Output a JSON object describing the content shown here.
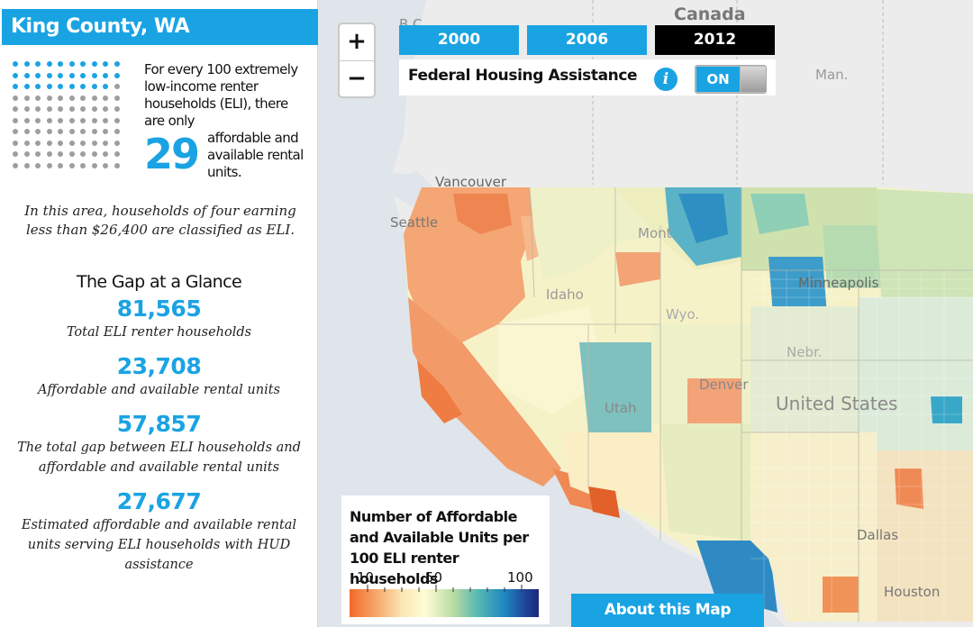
{
  "sidebar": {
    "title": "King County, WA",
    "dot_grid": {
      "total": 100,
      "highlighted": 29,
      "colors": {
        "highlighted": "#1aa3e3",
        "remaining": "#9e9e9e"
      }
    },
    "stat_text_1": "For every 100 extremely low-income renter households (ELI), there are only",
    "stat_number": "29",
    "stat_text_2": "affordable and available rental units.",
    "eli_note": "In this area, households of four earning less than $26,400 are classified as ELI.",
    "gap_heading": "The Gap at a Glance",
    "stats": [
      {
        "value": "81,565",
        "label": "Total ELI renter households"
      },
      {
        "value": "23,708",
        "label": "Affordable and available rental units"
      },
      {
        "value": "57,857",
        "label": "The total gap between ELI households and affordable and available rental units"
      },
      {
        "value": "27,677",
        "label": "Estimated affordable and available rental units serving ELI households with HUD assistance"
      }
    ]
  },
  "map": {
    "zoom_in": "+",
    "zoom_out": "−",
    "years": [
      {
        "label": "2000",
        "active": false
      },
      {
        "label": "2006",
        "active": false
      },
      {
        "label": "2012",
        "active": true
      }
    ],
    "colors": {
      "tab": "#1aa3e3",
      "tab_active": "#000000",
      "accent": "#1aa3e3"
    },
    "fha_label": "Federal Housing Assistance",
    "info_icon": "i",
    "toggle_label": "ON",
    "toggle_state": "on",
    "place_labels": {
      "canada": "Canada",
      "bc": "B.C.",
      "man": "Man.",
      "vancouver": "Vancouver",
      "seattle": "Seattle",
      "minneapolis": "Minneapolis",
      "united_states": "United States",
      "denver": "Denver",
      "utah": "Utah",
      "idaho": "Idaho",
      "mont": "Mont.",
      "wyo": "Wyo.",
      "dallas": "Dallas",
      "houston": "Houston",
      "nebr": "Nebr."
    },
    "legend": {
      "title": "Number of Affordable and Available Units per 100 ELI renter households",
      "ticks": [
        "10",
        "50",
        "100"
      ],
      "scale_colors": [
        "#f16a2a",
        "#f7a66a",
        "#fbe7b5",
        "#fffcd5",
        "#b9dba4",
        "#55b8b2",
        "#1f86c1",
        "#1f3f95"
      ]
    },
    "about_label": "About this Map"
  }
}
